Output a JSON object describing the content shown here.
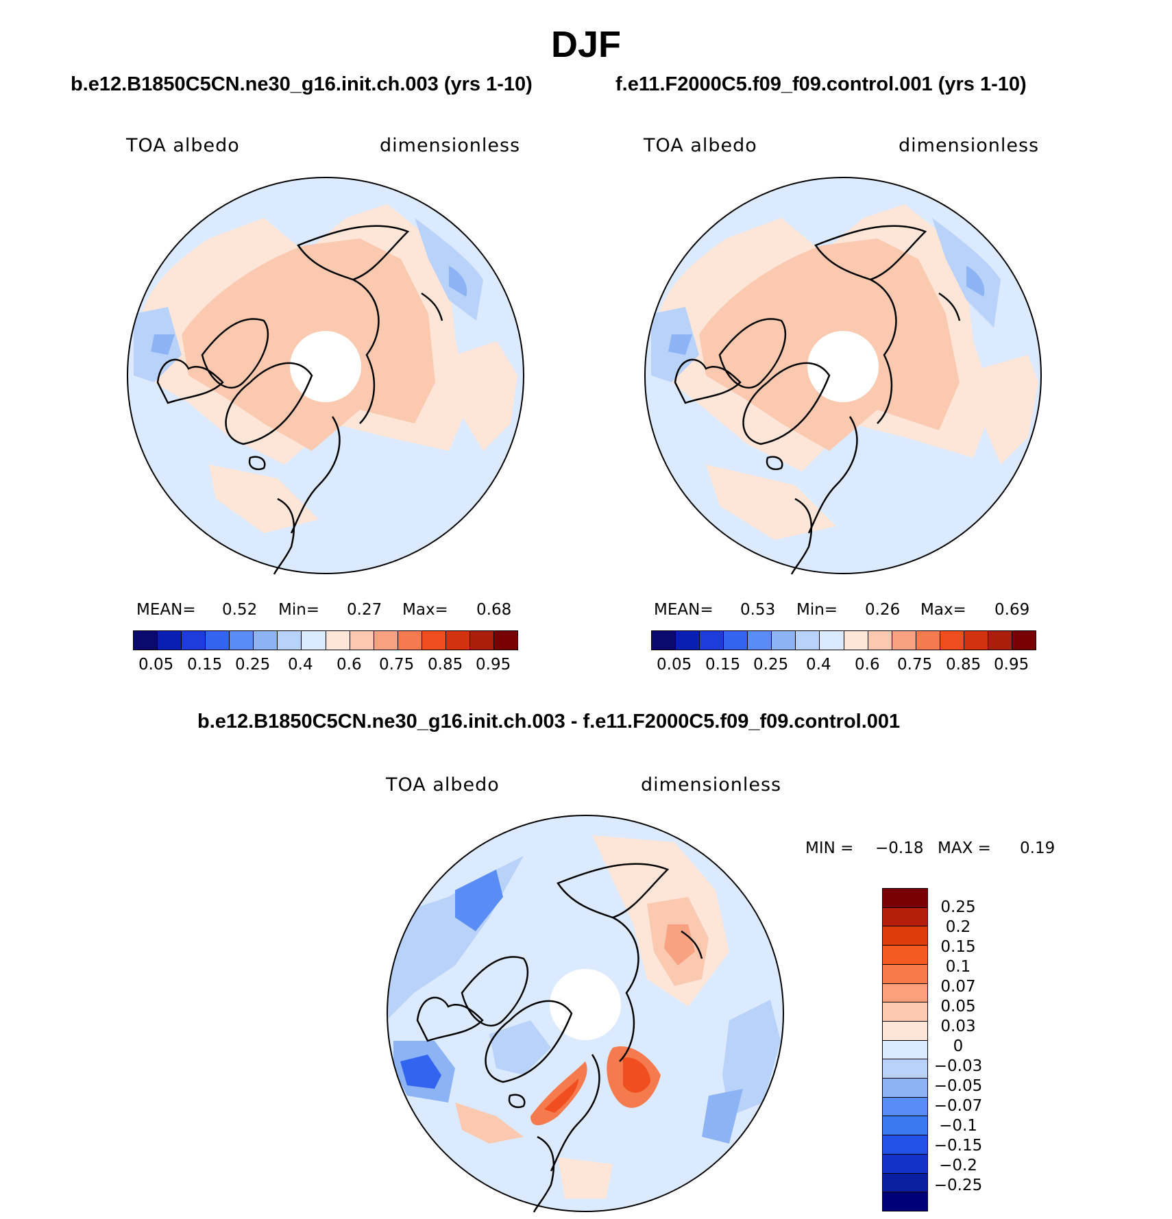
{
  "title": "DJF",
  "panels": [
    {
      "run": "b.e12.B1850C5CN.ne30_g16.init.ch.003 (yrs 1-10)",
      "variable": "TOA albedo",
      "units": "dimensionless",
      "stats": {
        "mean_label": "MEAN=",
        "mean": "0.52",
        "min_label": "Min=",
        "min": "0.27",
        "max_label": "Max=",
        "max": "0.68"
      }
    },
    {
      "run": "f.e11.F2000C5.f09_f09.control.001 (yrs 1-10)",
      "variable": "TOA albedo",
      "units": "dimensionless",
      "stats": {
        "mean_label": "MEAN=",
        "mean": "0.53",
        "min_label": "Min=",
        "min": "0.26",
        "max_label": "Max=",
        "max": "0.69"
      }
    }
  ],
  "diff_panel": {
    "run": "b.e12.B1850C5CN.ne30_g16.init.ch.003 - f.e11.F2000C5.f09_f09.control.001",
    "variable": "TOA albedo",
    "units": "dimensionless",
    "stats": {
      "min_label": "MIN =",
      "min": "−0.18",
      "max_label": "MAX =",
      "max": "0.19"
    }
  },
  "colorbar": {
    "colors": [
      "#0a0a6e",
      "#0a1eb4",
      "#1e3cdc",
      "#3264f0",
      "#5a8cf5",
      "#8cb4f5",
      "#b9d2fa",
      "#dceaff",
      "#fde6d8",
      "#fbc8b0",
      "#f8a282",
      "#f57a4e",
      "#f04e1e",
      "#d2320f",
      "#aa1e0a",
      "#780000"
    ],
    "labels": [
      "0.05",
      "0.15",
      "0.25",
      "0.4",
      "0.6",
      "0.75",
      "0.85",
      "0.95"
    ]
  },
  "diff_colorbar": {
    "colors": [
      "#780000",
      "#b41e0a",
      "#dc3c0a",
      "#f55a23",
      "#f87a4b",
      "#fba07a",
      "#fbc8b0",
      "#fde6d8",
      "#dceaff",
      "#b9d2fa",
      "#8cb4f5",
      "#5a8cf5",
      "#3c78f0",
      "#2350e6",
      "#1432c8",
      "#0a1ea0",
      "#000078"
    ],
    "labels": [
      "0.25",
      "0.2",
      "0.15",
      "0.1",
      "0.07",
      "0.05",
      "0.03",
      "0",
      "−0.03",
      "−0.05",
      "−0.07",
      "−0.1",
      "−0.15",
      "−0.2",
      "−0.25"
    ]
  }
}
